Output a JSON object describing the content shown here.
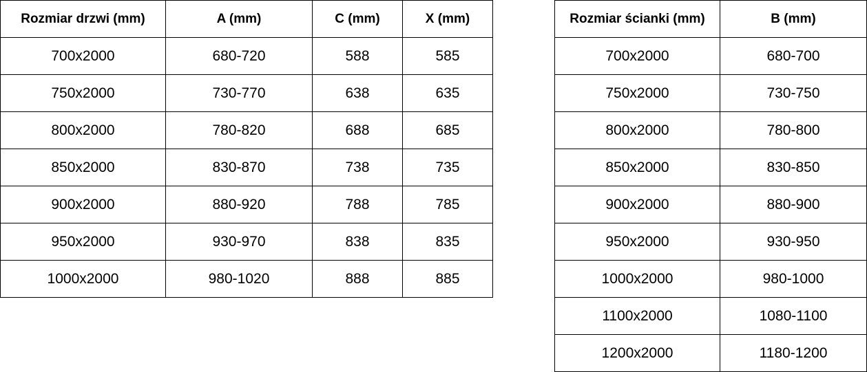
{
  "door_table": {
    "headers": [
      "Rozmiar drzwi (mm)",
      "A (mm)",
      "C (mm)",
      "X (mm)"
    ],
    "rows": [
      [
        "700x2000",
        "680-720",
        "588",
        "585"
      ],
      [
        "750x2000",
        "730-770",
        "638",
        "635"
      ],
      [
        "800x2000",
        "780-820",
        "688",
        "685"
      ],
      [
        "850x2000",
        "830-870",
        "738",
        "735"
      ],
      [
        "900x2000",
        "880-920",
        "788",
        "785"
      ],
      [
        "950x2000",
        "930-970",
        "838",
        "835"
      ],
      [
        "1000x2000",
        "980-1020",
        "888",
        "885"
      ]
    ]
  },
  "wall_table": {
    "headers": [
      "Rozmiar ścianki (mm)",
      "B (mm)"
    ],
    "rows": [
      [
        "700x2000",
        "680-700"
      ],
      [
        "750x2000",
        "730-750"
      ],
      [
        "800x2000",
        "780-800"
      ],
      [
        "850x2000",
        "830-850"
      ],
      [
        "900x2000",
        "880-900"
      ],
      [
        "950x2000",
        "930-950"
      ],
      [
        "1000x2000",
        "980-1000"
      ],
      [
        "1100x2000",
        "1080-1100"
      ],
      [
        "1200x2000",
        "1180-1200"
      ]
    ]
  }
}
